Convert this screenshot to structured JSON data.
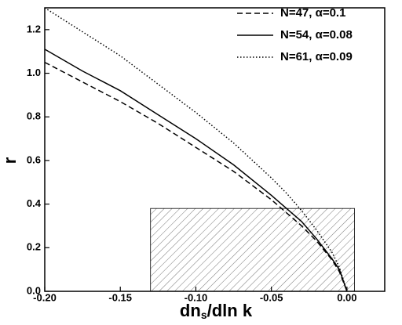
{
  "chart_data": {
    "type": "line",
    "xlabel": [
      "dn",
      "s",
      "/dln k"
    ],
    "ylabel": "r",
    "xlim": [
      -0.2,
      0.025
    ],
    "ylim": [
      0,
      1.3
    ],
    "xticks": [
      {
        "value": -0.2,
        "label": "-0.20"
      },
      -0.15,
      {
        "value": -0.1,
        "label": "-0.10"
      },
      -0.05,
      {
        "value": 0,
        "label": "0.00"
      }
    ],
    "yticks": [
      {
        "value": 0,
        "label": "0.0"
      },
      0.2,
      0.4,
      0.6,
      0.8,
      {
        "value": 1,
        "label": "1.0"
      },
      1.2
    ],
    "x": [
      -0.2,
      -0.175,
      -0.15,
      -0.125,
      -0.1,
      -0.075,
      -0.05,
      -0.04,
      -0.03,
      -0.02,
      -0.01,
      -0.005,
      0
    ],
    "series": [
      {
        "name": "N=47, α=0.1",
        "color": "#000000",
        "style": "dashed",
        "values": [
          1.05,
          0.96,
          0.87,
          0.77,
          0.66,
          0.55,
          0.42,
          0.36,
          0.3,
          0.23,
          0.145,
          0.09,
          0
        ]
      },
      {
        "name": "N=54, α=0.08",
        "color": "#000000",
        "style": "solid",
        "values": [
          1.11,
          1.01,
          0.92,
          0.81,
          0.7,
          0.58,
          0.44,
          0.38,
          0.32,
          0.24,
          0.15,
          0.1,
          0
        ]
      },
      {
        "name": "N=61, α=0.09",
        "color": "#000000",
        "style": "dotted",
        "values": [
          1.3,
          1.19,
          1.08,
          0.95,
          0.82,
          0.68,
          0.52,
          0.45,
          0.37,
          0.28,
          0.18,
          0.11,
          0
        ]
      }
    ],
    "shaded_region": {
      "x": [
        -0.13,
        0.005
      ],
      "y": [
        0,
        0.38
      ]
    },
    "legend": "upper right"
  }
}
